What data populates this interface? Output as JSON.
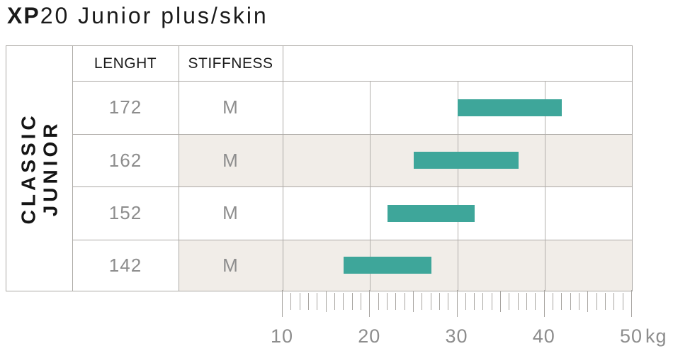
{
  "title": {
    "brand": "XP",
    "model": "20 Junior plus/skin"
  },
  "table": {
    "group_label": "CLASSIC\nJUNIOR",
    "columns": {
      "length": "LENGHT",
      "stiffness": "STIFFNESS"
    },
    "rows": [
      {
        "length": "172",
        "stiffness": "M"
      },
      {
        "length": "162",
        "stiffness": "M"
      },
      {
        "length": "152",
        "stiffness": "M"
      },
      {
        "length": "142",
        "stiffness": "M"
      }
    ]
  },
  "chart_data": {
    "type": "bar",
    "orientation": "horizontal-range",
    "title": "XP20 Junior plus/skin",
    "categories": [
      "172",
      "162",
      "152",
      "142"
    ],
    "bars": [
      {
        "length": "172",
        "stiffness": "M",
        "range_kg": [
          30,
          42
        ]
      },
      {
        "length": "162",
        "stiffness": "M",
        "range_kg": [
          25,
          37
        ]
      },
      {
        "length": "152",
        "stiffness": "M",
        "range_kg": [
          22,
          32
        ]
      },
      {
        "length": "142",
        "stiffness": "M",
        "range_kg": [
          17,
          27
        ]
      }
    ],
    "xlim": [
      10,
      50
    ],
    "x_major_ticks": [
      10,
      20,
      30,
      40,
      50
    ],
    "x_minor_step": 1,
    "x_medium_step": 5,
    "xlabel": "kg",
    "grid": "vertical-major",
    "legend": "none"
  },
  "colors": {
    "bar": "#3ea69a",
    "row_band": "#f1ede8",
    "border": "#aca9a5",
    "text_gray": "#8d8d8d",
    "heading": "#1c1c1c"
  }
}
